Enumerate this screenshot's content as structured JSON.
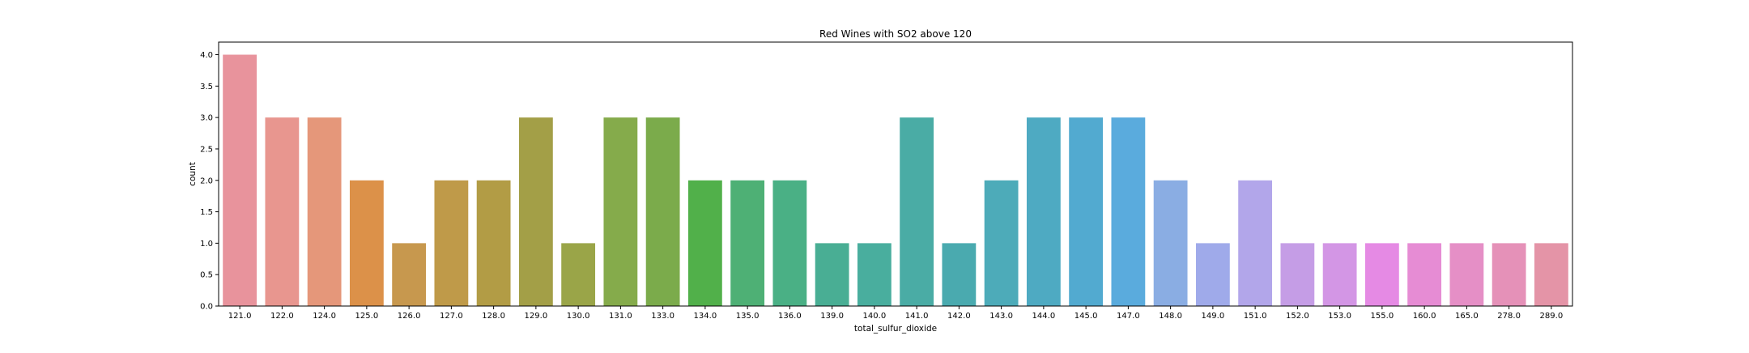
{
  "chart_data": {
    "type": "bar",
    "title": "Red Wines with SO2 above 120",
    "xlabel": "total_sulfur_dioxide",
    "ylabel": "count",
    "ylim": [
      0,
      4.2
    ],
    "yticks": [
      "0.0",
      "0.5",
      "1.0",
      "1.5",
      "2.0",
      "2.5",
      "3.0",
      "3.5",
      "4.0"
    ],
    "grid": false,
    "categories": [
      "121.0",
      "122.0",
      "124.0",
      "125.0",
      "126.0",
      "127.0",
      "128.0",
      "129.0",
      "130.0",
      "131.0",
      "133.0",
      "134.0",
      "135.0",
      "136.0",
      "139.0",
      "140.0",
      "141.0",
      "142.0",
      "143.0",
      "144.0",
      "145.0",
      "147.0",
      "148.0",
      "149.0",
      "151.0",
      "152.0",
      "153.0",
      "155.0",
      "160.0",
      "165.0",
      "278.0",
      "289.0"
    ],
    "values": [
      4,
      3,
      3,
      2,
      1,
      2,
      2,
      3,
      1,
      3,
      3,
      2,
      2,
      2,
      1,
      1,
      3,
      1,
      2,
      3,
      3,
      3,
      2,
      1,
      2,
      1,
      1,
      1,
      1,
      1,
      1,
      1
    ],
    "colors": [
      "#e8939c",
      "#e8968f",
      "#e5977a",
      "#dc9149",
      "#c7984e",
      "#bf9a49",
      "#b29c45",
      "#a39f47",
      "#9aa548",
      "#85ab4b",
      "#7bab4b",
      "#51b04a",
      "#4eb075",
      "#4ab085",
      "#49ae94",
      "#49ae9e",
      "#4aaca5",
      "#4aaaaf",
      "#4dabb9",
      "#4eaac2",
      "#52aad0",
      "#5aabdd",
      "#8aade3",
      "#9faaea",
      "#b2a6ea",
      "#c59de6",
      "#d396e5",
      "#e58ae4",
      "#e68cd4",
      "#e58fc6",
      "#e591b8",
      "#e494a7"
    ]
  }
}
